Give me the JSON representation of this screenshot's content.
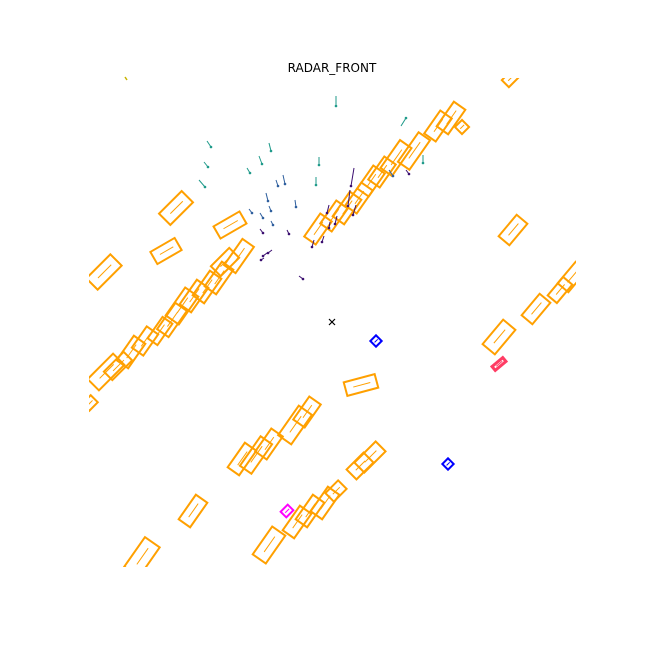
{
  "title": "RADAR_FRONT",
  "colors": {
    "car": "#FFA000",
    "pedestrian": "#0000FF",
    "bicycle": "#FF00FF",
    "barrier": "#FF3C64",
    "ego_marker": "#000000",
    "radar_near": "#3B0F70",
    "radar_mid": "#2F5F9E",
    "radar_far": "#1F9A8A"
  },
  "legend": []
}
